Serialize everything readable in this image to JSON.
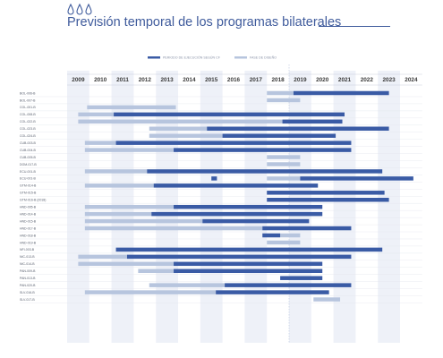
{
  "title": "Previsión temporal de los programas bilaterales",
  "colors": {
    "exec": "#3a5ba5",
    "design": "#b7c5de",
    "band": "#eef1f8",
    "title": "#3f5b9c"
  },
  "chart_data": {
    "type": "gantt",
    "legend": [
      {
        "key": "exec",
        "label": "PERIODO DE EJECUCIÓN SEGÚN CF",
        "color": "#3a5ba5"
      },
      {
        "key": "design",
        "label": "FASE DE DISEÑO",
        "color": "#b7c5de"
      }
    ],
    "legend_position": "top-right",
    "years": [
      2009,
      2010,
      2011,
      2012,
      2013,
      2014,
      2015,
      2016,
      2017,
      2018,
      2019,
      2020,
      2021,
      2022,
      2023,
      2024
    ],
    "reference_year": 2019,
    "rows": [
      {
        "label": "BOL-006-B",
        "design": [
          2018,
          2019.2
        ],
        "exec": [
          2019.2,
          2023.5
        ]
      },
      {
        "label": "BOL-007-B",
        "design": [
          2018,
          2019.5
        ],
        "exec": null
      },
      {
        "label": "COL-001-B",
        "design": [
          2009.9,
          2013.9
        ],
        "exec": null
      },
      {
        "label": "COL-008-B",
        "design": [
          2009.5,
          2011.1
        ],
        "exec": [
          2011.1,
          2021.5
        ]
      },
      {
        "label": "COL-022-B",
        "design": [
          2009.5,
          2018.7
        ],
        "exec": [
          2018.7,
          2021.4
        ]
      },
      {
        "label": "COL-023-B",
        "design": [
          2012.7,
          2015.3
        ],
        "exec": [
          2015.3,
          2023.5
        ]
      },
      {
        "label": "COL-024-B",
        "design": [
          2012.7,
          2016
        ],
        "exec": [
          2016,
          2021.1
        ]
      },
      {
        "label": "CUB-003-B",
        "design": [
          2009.8,
          2011.2
        ],
        "exec": [
          2011.2,
          2021.8
        ]
      },
      {
        "label": "CUB-004-B",
        "design": [
          2009.8,
          2013.8
        ],
        "exec": [
          2013.8,
          2021.8
        ]
      },
      {
        "label": "CUB-005-B",
        "design": [
          2018,
          2019.5
        ],
        "exec": null
      },
      {
        "label": "DOM-017-B",
        "design": [
          2018,
          2019.5
        ],
        "exec": null
      },
      {
        "label": "ECU-001-B",
        "design": [
          2009.8,
          2012.6
        ],
        "exec": [
          2012.6,
          2023.2
        ]
      },
      {
        "label": "ECU-001-B",
        "design": [
          2018,
          2019.5
        ],
        "exec": [
          2019.5,
          2024.6
        ],
        "extra_exec": [
          2015.5,
          2015.75
        ]
      },
      {
        "label": "GTM-014-B",
        "design": [
          2009.8,
          2012.9
        ],
        "exec": [
          2012.9,
          2020.3
        ]
      },
      {
        "label": "GTM-015-B",
        "design": null,
        "exec": [
          2018,
          2023.3
        ]
      },
      {
        "label": "GTM-016-B (2018)",
        "design": null,
        "exec": [
          2018,
          2023.5
        ]
      },
      {
        "label": "HND-005-B",
        "design": [
          2009.8,
          2013.8
        ],
        "exec": [
          2013.8,
          2020.5
        ]
      },
      {
        "label": "HND-014-B",
        "design": [
          2009.8,
          2012.8
        ],
        "exec": [
          2012.8,
          2020.5
        ]
      },
      {
        "label": "HND-015-B",
        "design": [
          2009.8,
          2015.1
        ],
        "exec": [
          2015.1,
          2019.9
        ]
      },
      {
        "label": "HND-017-B",
        "design": [
          2009.8,
          2017.8
        ],
        "exec": [
          2017.8,
          2021.8
        ]
      },
      {
        "label": "HND-018-B",
        "design": [
          2018.6,
          2019.5
        ],
        "exec": [
          2017.8,
          2018.6
        ]
      },
      {
        "label": "HND-019-B",
        "design": [
          2018,
          2019.5
        ],
        "exec": null
      },
      {
        "label": "NFI-003-B",
        "design": [
          2018,
          2019.5
        ],
        "exec": [
          2011.2,
          2023.2
        ]
      },
      {
        "label": "NIC-013-B",
        "design": [
          2009.5,
          2011.7
        ],
        "exec": [
          2011.7,
          2021.8
        ]
      },
      {
        "label": "NIC-014-B",
        "design": [
          2009.5,
          2013.8
        ],
        "exec": [
          2013.8,
          2020.5
        ]
      },
      {
        "label": "PAN-009-B",
        "design": [
          2012.2,
          2013.8
        ],
        "exec": [
          2013.8,
          2020.5
        ]
      },
      {
        "label": "PAN-013-B",
        "design": null,
        "exec": [
          2018.6,
          2020.5
        ]
      },
      {
        "label": "PAN-020-B",
        "design": [
          2012.7,
          2016.1
        ],
        "exec": [
          2016.1,
          2021.8
        ]
      },
      {
        "label": "SLV-016-B",
        "design": [
          2009.8,
          2015.7
        ],
        "exec": [
          2015.7,
          2020.8
        ]
      },
      {
        "label": "SLV-017-B",
        "design": [
          2020.1,
          2021.3
        ],
        "exec": null
      }
    ]
  }
}
